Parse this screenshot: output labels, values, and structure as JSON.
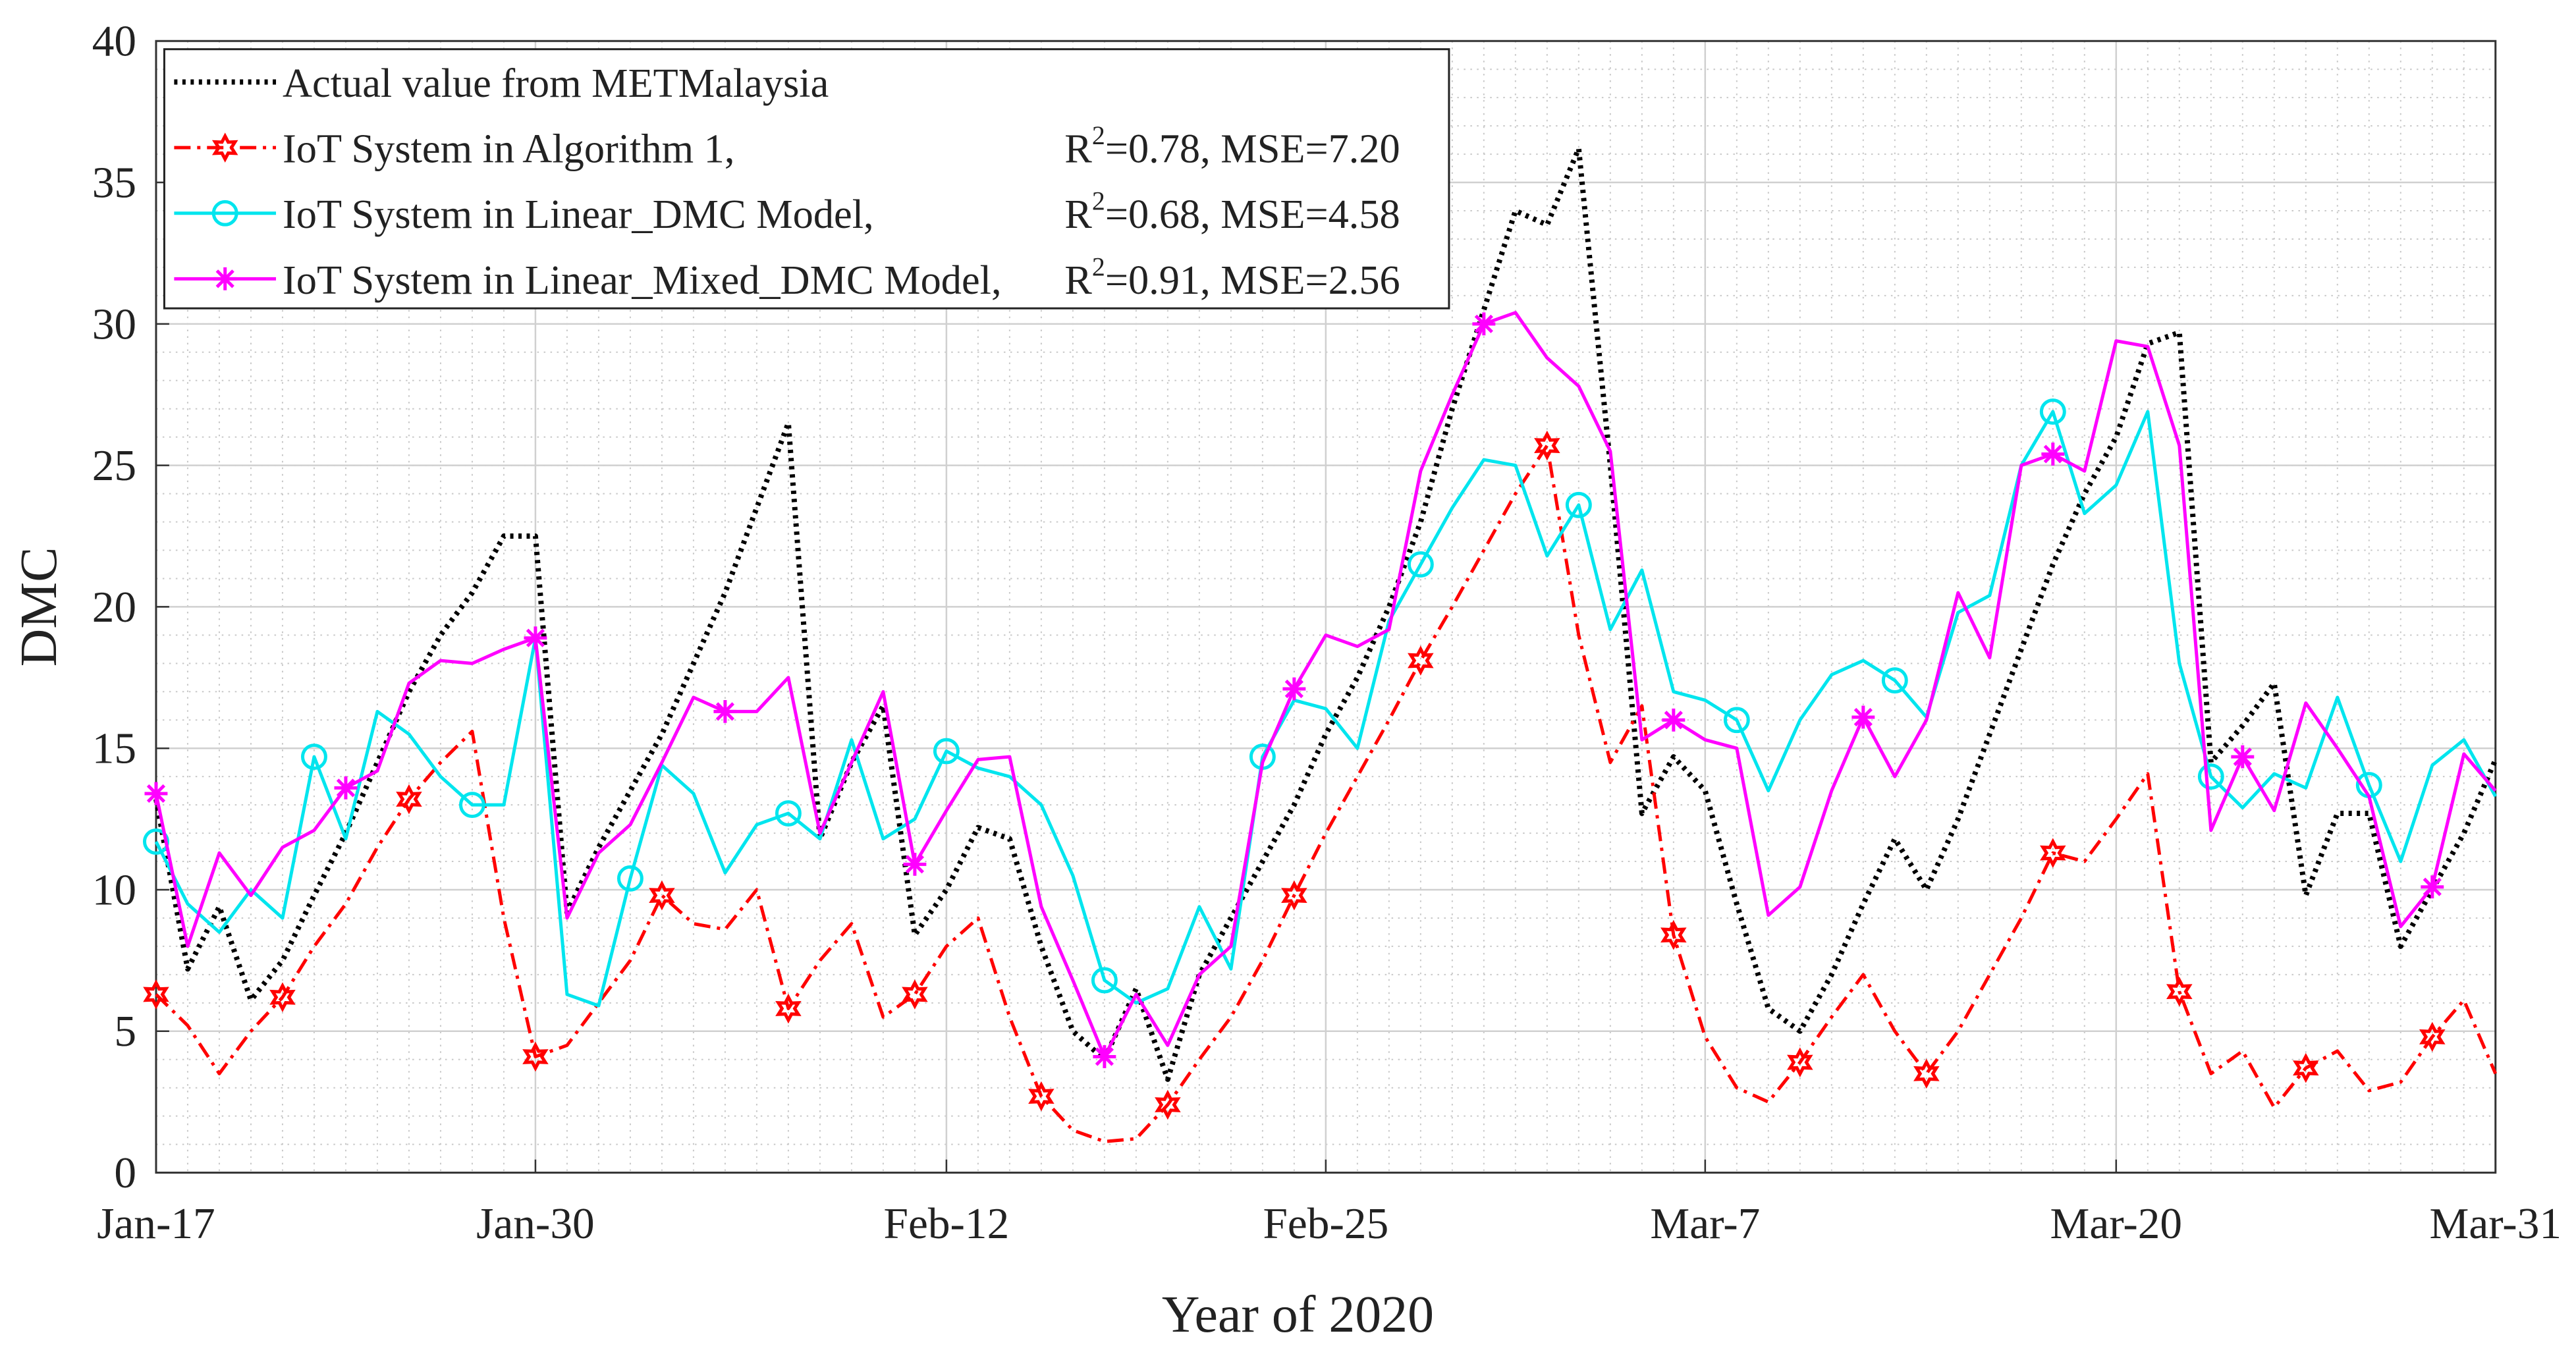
{
  "chart_data": {
    "type": "line",
    "xlabel": "Year of 2020",
    "ylabel": "DMC",
    "categories": [
      "Jan-17",
      null,
      null,
      null,
      null,
      null,
      null,
      null,
      null,
      null,
      null,
      null,
      "Jan-30",
      null,
      null,
      null,
      null,
      null,
      null,
      null,
      null,
      null,
      null,
      null,
      null,
      "Feb-12",
      null,
      null,
      null,
      null,
      null,
      null,
      null,
      null,
      null,
      null,
      null,
      "Feb-25",
      null,
      null,
      null,
      null,
      null,
      null,
      null,
      null,
      null,
      null,
      null,
      "Mar-7",
      null,
      null,
      null,
      null,
      null,
      null,
      null,
      null,
      null,
      null,
      null,
      null,
      "Mar-20",
      null,
      null,
      null,
      null,
      null,
      null,
      null,
      null,
      null,
      null,
      null,
      "Mar-31"
    ],
    "ylim": [
      0,
      40
    ],
    "yticks": [
      0,
      5,
      10,
      15,
      20,
      25,
      30,
      35,
      40
    ],
    "grid": true,
    "minor_grid": true,
    "legend": "upper left",
    "series": [
      {
        "name": "Actual value from METMalaysia",
        "color": "#000000",
        "style": "dotted",
        "marker": "none",
        "values": [
          13.2,
          7.2,
          9.4,
          6.1,
          7.5,
          9.8,
          12,
          14.5,
          17,
          19,
          20.5,
          22.5,
          22.5,
          9.2,
          11.5,
          13.5,
          15.5,
          18,
          20.5,
          23.5,
          26.5,
          11.8,
          14.5,
          16.5,
          8.4,
          10,
          12.2,
          11.8,
          8,
          5,
          4,
          6.5,
          3.3,
          7,
          9,
          11,
          13,
          15.5,
          17.5,
          20,
          23,
          27,
          30.5,
          34,
          33.5,
          36.2,
          25,
          12.7,
          14.7,
          13.5,
          9.5,
          5.8,
          5,
          7,
          9.5,
          11.8,
          10,
          12.5,
          15.5,
          18.5,
          21.5,
          24,
          26,
          29.3,
          29.7,
          14.5,
          15.8,
          17.3,
          9.8,
          12.7,
          12.7,
          8,
          10,
          12,
          14.6
        ]
      },
      {
        "name": "IoT System in Algorithm 1,",
        "stats": [
          "R",
          "2",
          "=0.78, MSE=7.20"
        ],
        "color": "#ff0000",
        "style": "dashdot",
        "marker": "hexagram",
        "marker_every": 4,
        "values": [
          6.3,
          5.2,
          3.5,
          5,
          6.2,
          8,
          9.5,
          11.5,
          13.2,
          14.5,
          15.6,
          9,
          4.1,
          4.5,
          6,
          7.5,
          9.8,
          8.8,
          8.6,
          10,
          5.8,
          7.5,
          8.8,
          5.5,
          6.3,
          8,
          9,
          5.5,
          2.7,
          1.5,
          1.1,
          1.2,
          2.4,
          4,
          5.5,
          7.5,
          9.8,
          12,
          14,
          16,
          18.1,
          20,
          22,
          24,
          25.7,
          19,
          14.5,
          16.5,
          8.4,
          4.8,
          3,
          2.5,
          3.9,
          5.5,
          7,
          5,
          3.5,
          5,
          7,
          9,
          11.3,
          11,
          12.5,
          14.1,
          6.4,
          3.5,
          4.3,
          2.3,
          3.7,
          4.3,
          2.9,
          3.2,
          4.8,
          6.1,
          3.5
        ]
      },
      {
        "name": "IoT System in Linear_DMC Model,",
        "stats": [
          "R",
          "2",
          "=0.68, MSE=4.58"
        ],
        "color": "#00e5ee",
        "style": "solid",
        "marker": "circle",
        "marker_every": 5,
        "values": [
          11.7,
          9.5,
          8.5,
          10,
          9,
          14.7,
          11.8,
          16.3,
          15.5,
          14,
          13,
          13,
          18.9,
          6.3,
          5.9,
          10.4,
          14.4,
          13.4,
          10.6,
          12.3,
          12.7,
          11.8,
          15.3,
          11.8,
          12.5,
          14.9,
          14.3,
          14,
          13,
          10.5,
          6.8,
          6,
          6.5,
          9.4,
          7.2,
          14.7,
          16.7,
          16.4,
          15,
          19.5,
          21.5,
          23.5,
          25.2,
          25,
          21.8,
          23.6,
          19.2,
          21.3,
          17,
          16.7,
          16,
          13.5,
          16,
          17.6,
          18.1,
          17.4,
          16.1,
          19.8,
          20.4,
          25,
          26.9,
          23.3,
          24.3,
          26.9,
          18,
          14,
          12.9,
          14.1,
          13.6,
          16.8,
          13.7,
          11,
          14.4,
          15.3,
          13.3
        ]
      },
      {
        "name": "IoT System in Linear_Mixed_DMC Model,",
        "stats": [
          "R",
          "2",
          "=0.91, MSE=2.56"
        ],
        "color": "#ff00ff",
        "style": "solid",
        "marker": "asterisk",
        "marker_every": 6,
        "values": [
          13.4,
          8,
          11.3,
          9.8,
          11.5,
          12.1,
          13.6,
          14.2,
          17.3,
          18.1,
          18,
          18.5,
          18.9,
          9,
          11.3,
          12.3,
          14.5,
          16.8,
          16.3,
          16.3,
          17.5,
          12,
          14.5,
          17,
          10.9,
          12.8,
          14.6,
          14.7,
          9.4,
          6.8,
          4.1,
          6.3,
          4.5,
          7,
          8,
          14.5,
          17.1,
          19,
          18.6,
          19.2,
          24.8,
          27.5,
          30,
          30.4,
          28.8,
          27.8,
          25.5,
          15.3,
          16,
          15.3,
          15,
          9.1,
          10.1,
          13.5,
          16.1,
          14,
          16,
          20.5,
          18.2,
          25,
          25.4,
          24.8,
          29.4,
          29.2,
          25.7,
          12.1,
          14.7,
          12.8,
          16.6,
          15,
          13.3,
          8.7,
          10.1,
          14.8,
          13.5
        ]
      }
    ]
  }
}
